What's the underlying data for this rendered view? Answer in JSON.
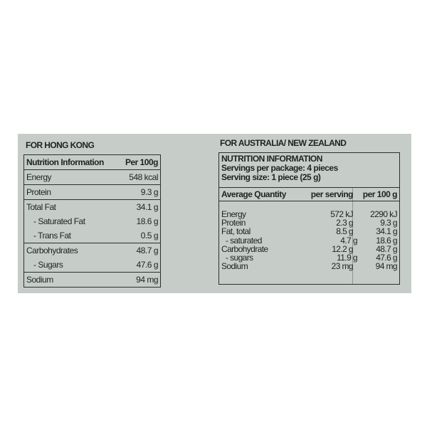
{
  "hong_kong": {
    "title": "FOR HONG KONG",
    "header": {
      "label": "Nutrition Information",
      "value": "Per 100g"
    },
    "groups": [
      [
        {
          "label": "Energy",
          "value": "548 kcal"
        }
      ],
      [
        {
          "label": "Protein",
          "value": "9.3 g"
        }
      ],
      [
        {
          "label": "Total Fat",
          "value": "34.1 g"
        },
        {
          "label": "- Saturated Fat",
          "value": "18.6 g"
        },
        {
          "label": "- Trans Fat",
          "value": "0.5 g"
        }
      ],
      [
        {
          "label": "Carbohydrates",
          "value": "48.7 g"
        },
        {
          "label": "- Sugars",
          "value": "47.6 g"
        }
      ],
      [
        {
          "label": "Sodium",
          "value": "94 mg"
        }
      ]
    ]
  },
  "australia_nz": {
    "title": "FOR AUSTRALIA/ NEW ZEALAND",
    "heading": "NUTRITION INFORMATION",
    "servings_per_package": "Servings per package: 4 pieces",
    "serving_size": "Serving size: 1 piece (25 g)",
    "columns": [
      "Average Quantity",
      "per serving",
      "per 100 g"
    ],
    "rows": [
      [
        "Energy",
        "572 kJ",
        "2290 kJ"
      ],
      [
        "Protein",
        "2.3 g",
        "9.3 g"
      ],
      [
        "Fat, total",
        "8.5 g",
        "34.1 g"
      ],
      [
        " - saturated",
        "4.7 g",
        "18.6 g"
      ],
      [
        "Carbohydrate",
        "12.2 g",
        "48.7 g"
      ],
      [
        " - sugars",
        "11.9 g",
        "47.6 g"
      ],
      [
        "Sodium",
        "23 mg",
        "94 mg"
      ]
    ]
  }
}
